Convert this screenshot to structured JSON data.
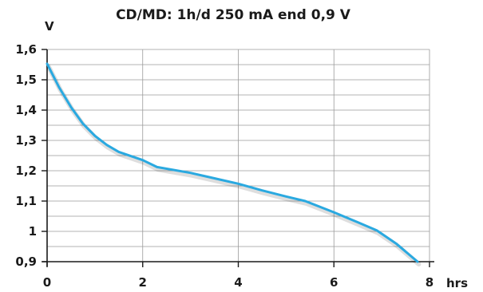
{
  "chart_data": {
    "type": "line",
    "title": "CD/MD: 1h/d 250 mA end 0,9 V",
    "ylabel": "V",
    "xlabel": "hrs",
    "xlim": [
      0,
      8
    ],
    "ylim": [
      0.9,
      1.6
    ],
    "x_ticks": [
      0,
      2,
      4,
      6,
      8
    ],
    "x_tick_labels": [
      "0",
      "2",
      "4",
      "6",
      "8"
    ],
    "y_ticks": [
      0.9,
      1.0,
      1.1,
      1.2,
      1.3,
      1.4,
      1.5,
      1.6
    ],
    "y_tick_labels": [
      "0,9",
      "1",
      "1,1",
      "1,2",
      "1,3",
      "1,4",
      "1,5",
      "1,6"
    ],
    "grid": true,
    "series": [
      {
        "color": "#2aa9e0",
        "x": [
          0,
          0.25,
          0.5,
          0.75,
          1.0,
          1.25,
          1.5,
          2.0,
          2.3,
          3.0,
          3.5,
          4.0,
          4.5,
          5.0,
          5.4,
          6.0,
          6.5,
          6.9,
          7.3,
          7.75
        ],
        "y": [
          1.553,
          1.475,
          1.41,
          1.355,
          1.315,
          1.285,
          1.262,
          1.235,
          1.212,
          1.193,
          1.175,
          1.157,
          1.135,
          1.115,
          1.1,
          1.063,
          1.03,
          1.003,
          0.96,
          0.9
        ]
      }
    ]
  }
}
